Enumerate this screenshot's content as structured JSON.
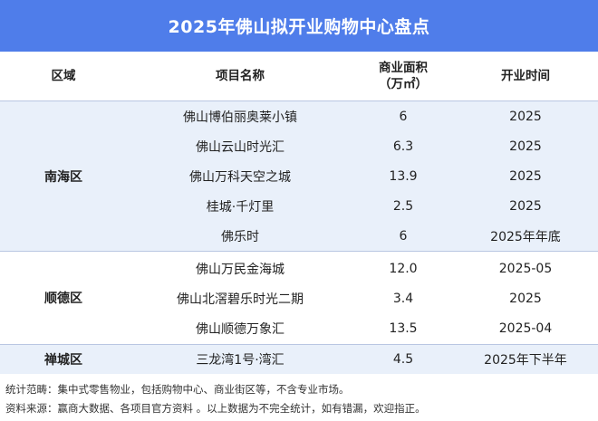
{
  "title": "2025年佛山拟开业购物中心盘点",
  "headers": {
    "region": "区域",
    "name": "项目名称",
    "area_line1": "商业面积",
    "area_line2": "（万㎡）",
    "time": "开业时间"
  },
  "groups": [
    {
      "region": "南海区",
      "rows": [
        {
          "name": "佛山博伯丽奥莱小镇",
          "area": "6",
          "time": "2025"
        },
        {
          "name": "佛山云山时光汇",
          "area": "6.3",
          "time": "2025"
        },
        {
          "name": "佛山万科天空之城",
          "area": "13.9",
          "time": "2025"
        },
        {
          "name": "桂城·千灯里",
          "area": "2.5",
          "time": "2025"
        },
        {
          "name": "佛乐时",
          "area": "6",
          "time": "2025年年底"
        }
      ]
    },
    {
      "region": "顺德区",
      "rows": [
        {
          "name": "佛山万民金海城",
          "area": "12.0",
          "time": "2025-05"
        },
        {
          "name": "佛山北滘碧乐时光二期",
          "area": "3.4",
          "time": "2025"
        },
        {
          "name": "佛山顺德万象汇",
          "area": "13.5",
          "time": "2025-04"
        }
      ]
    },
    {
      "region": "禅城区",
      "rows": [
        {
          "name": "三龙湾1号·湾汇",
          "area": "4.5",
          "time": "2025年下半年"
        }
      ]
    }
  ],
  "footer": {
    "scope": "统计范畴：集中式零售物业，包括购物中心、商业街区等，不含专业市场。",
    "source": "资料来源：赢商大数据、各项目官方资料 。以上数据为不完全统计，如有错漏，欢迎指正。"
  }
}
